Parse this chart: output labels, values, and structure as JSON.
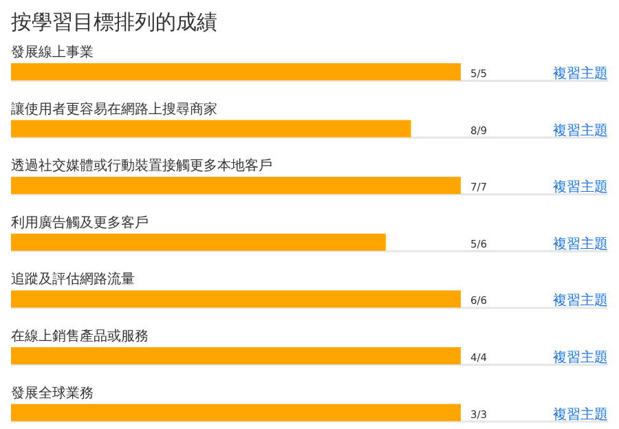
{
  "chart_data": {
    "type": "bar",
    "orientation": "horizontal",
    "xlim": [
      0,
      1
    ],
    "tick_labels": false,
    "title": "按學習目標排列的成績",
    "categories": [
      "發展線上事業",
      "讓使用者更容易在網路上搜尋商家",
      "透過社交媒體或行動裝置接觸更多本地客戶",
      "利用廣告觸及更多客戶",
      "追蹤及評估網路流量",
      "在線上銷售產品或服務",
      "發展全球業務"
    ],
    "values": [
      1,
      0.889,
      1,
      0.833,
      1,
      1,
      1
    ],
    "value_labels": [
      "5/5",
      "8/9",
      "7/7",
      "5/6",
      "6/6",
      "4/4",
      "3/3"
    ],
    "color": "#ffa500",
    "annotations": [
      "複習主題",
      "複習主題",
      "複習主題",
      "複習主題",
      "複習主題",
      "複習主題",
      "複習主題"
    ]
  }
}
